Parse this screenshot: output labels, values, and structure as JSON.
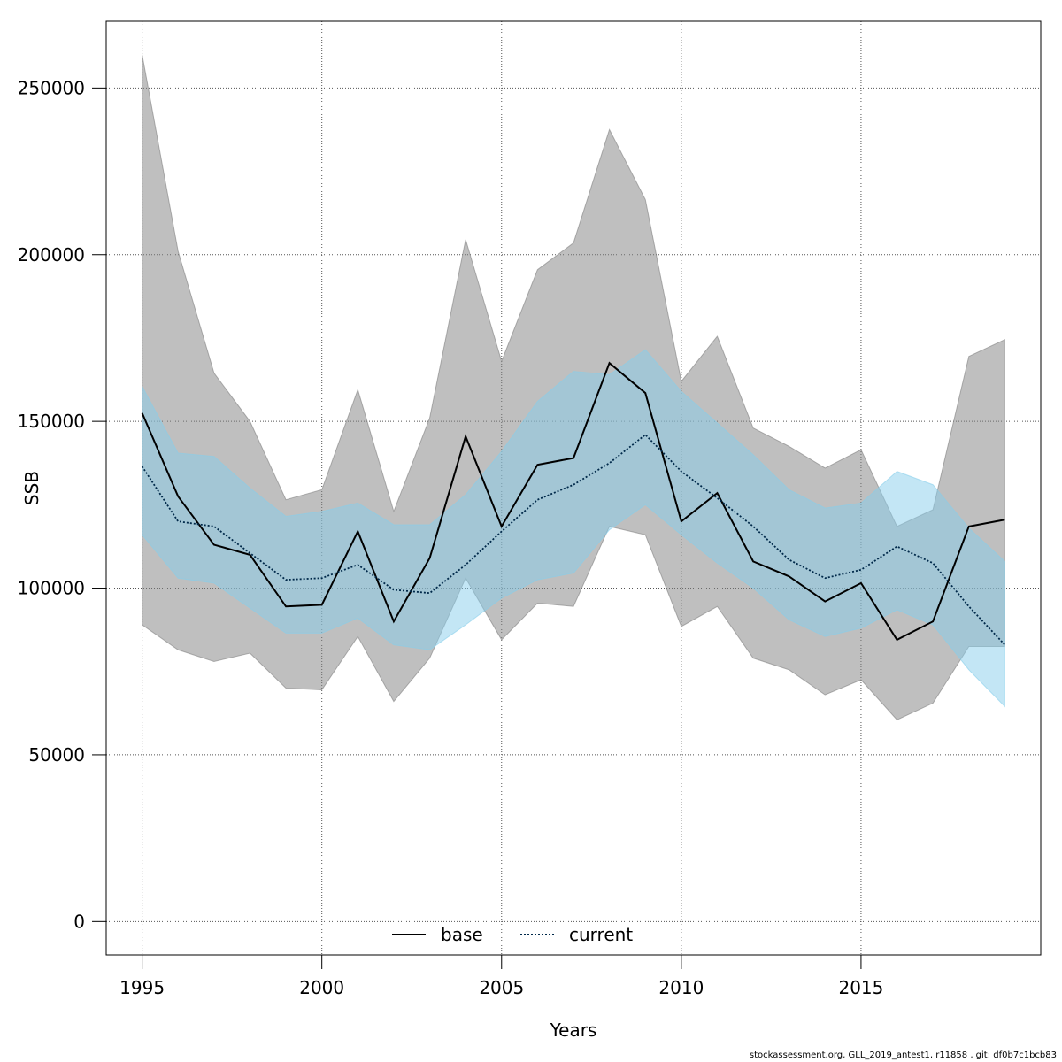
{
  "chart_data": {
    "type": "line",
    "xlabel": "Years",
    "ylabel": "SSB",
    "xlim": [
      1994,
      2020
    ],
    "ylim": [
      -10000,
      270000
    ],
    "x_ticks": [
      1995,
      2000,
      2005,
      2010,
      2015
    ],
    "y_ticks": [
      0,
      50000,
      100000,
      150000,
      200000,
      250000
    ],
    "grid": true,
    "legend_position": "bottom-center",
    "x": [
      1995,
      1996,
      1997,
      1998,
      1999,
      2000,
      2001,
      2002,
      2003,
      2004,
      2005,
      2006,
      2007,
      2008,
      2009,
      2010,
      2011,
      2012,
      2013,
      2014,
      2015,
      2016,
      2017,
      2018,
      2019
    ],
    "series": [
      {
        "name": "base",
        "color": "#000000",
        "line_style": "solid",
        "band_color": "#808080",
        "values": [
          152500,
          127500,
          113000,
          110000,
          94500,
          95000,
          117000,
          90000,
          109000,
          145500,
          118500,
          137000,
          139000,
          167500,
          158500,
          120000,
          128500,
          108000,
          103500,
          96000,
          101500,
          84500,
          90000,
          118500,
          120500
        ],
        "lower": [
          89000,
          81500,
          78000,
          80500,
          70000,
          69500,
          85500,
          66000,
          79000,
          103000,
          84500,
          95500,
          94500,
          118500,
          116000,
          88500,
          94500,
          79000,
          75500,
          68000,
          72500,
          60500,
          65500,
          82500,
          82500
        ],
        "upper": [
          260000,
          201000,
          164500,
          150000,
          126500,
          129500,
          159500,
          123000,
          151000,
          204500,
          168000,
          195500,
          203500,
          237500,
          216500,
          162000,
          175500,
          148000,
          142500,
          136000,
          141500,
          118500,
          123500,
          169500,
          174500
        ]
      },
      {
        "name": "current",
        "color": "#00294a",
        "line_style": "dotted",
        "band_color": "#87ceeb",
        "values": [
          136500,
          120000,
          118500,
          110500,
          102500,
          103000,
          107000,
          99500,
          98500,
          107000,
          117000,
          126500,
          131000,
          137500,
          146000,
          135000,
          127000,
          118500,
          108500,
          103000,
          105500,
          112500,
          107500,
          94500,
          83000
        ],
        "lower": [
          116000,
          103000,
          101500,
          94000,
          86500,
          86500,
          91000,
          83000,
          81500,
          89000,
          97000,
          102500,
          104500,
          117500,
          125000,
          116000,
          107500,
          100000,
          90500,
          85500,
          88000,
          93500,
          89000,
          75500,
          64500
        ],
        "upper": [
          160500,
          140500,
          139500,
          130000,
          121500,
          123000,
          125500,
          119000,
          119000,
          128000,
          141000,
          156000,
          165000,
          164000,
          171500,
          159000,
          149500,
          140000,
          129500,
          124000,
          125500,
          135000,
          131000,
          118000,
          108000
        ]
      }
    ]
  },
  "footer": {
    "note": "stockassessment.org, GLL_2019_antest1, r11858 , git: df0b7c1bcb83"
  }
}
